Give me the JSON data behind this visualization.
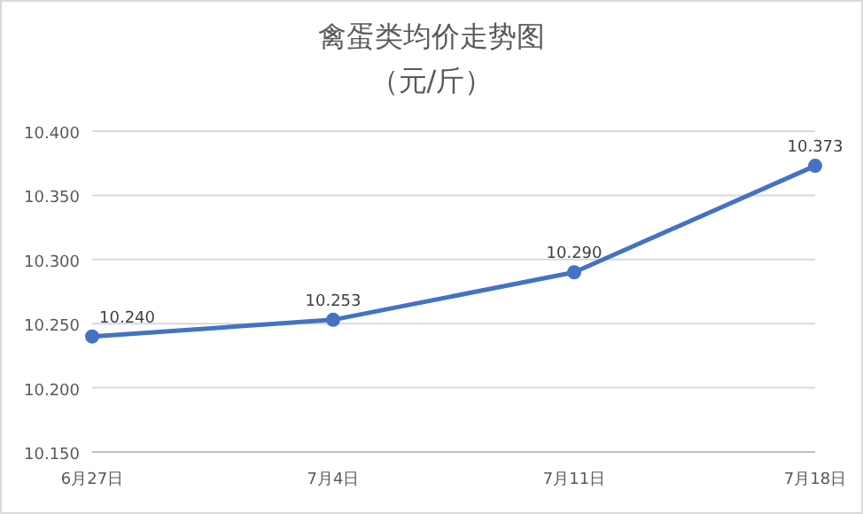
{
  "chart_data": {
    "type": "line",
    "title": "禽蛋类均价走势图",
    "subtitle": "（元/斤）",
    "categories": [
      "6月27日",
      "7月4日",
      "7月11日",
      "7月18日"
    ],
    "series": [
      {
        "color": "#4472c4",
        "values": [
          10.24,
          10.253,
          10.29,
          10.373
        ],
        "value_labels": [
          "10.240",
          "10.253",
          "10.290",
          "10.373"
        ]
      }
    ],
    "ylim": [
      10.15,
      10.4
    ],
    "yticks": [
      {
        "value": 10.15,
        "label": "10.150"
      },
      {
        "value": 10.2,
        "label": "10.200"
      },
      {
        "value": 10.25,
        "label": "10.250"
      },
      {
        "value": 10.3,
        "label": "10.300"
      },
      {
        "value": 10.35,
        "label": "10.350"
      },
      {
        "value": 10.4,
        "label": "10.400"
      }
    ],
    "grid": "y",
    "marker": "circle",
    "line_style": "solid"
  }
}
